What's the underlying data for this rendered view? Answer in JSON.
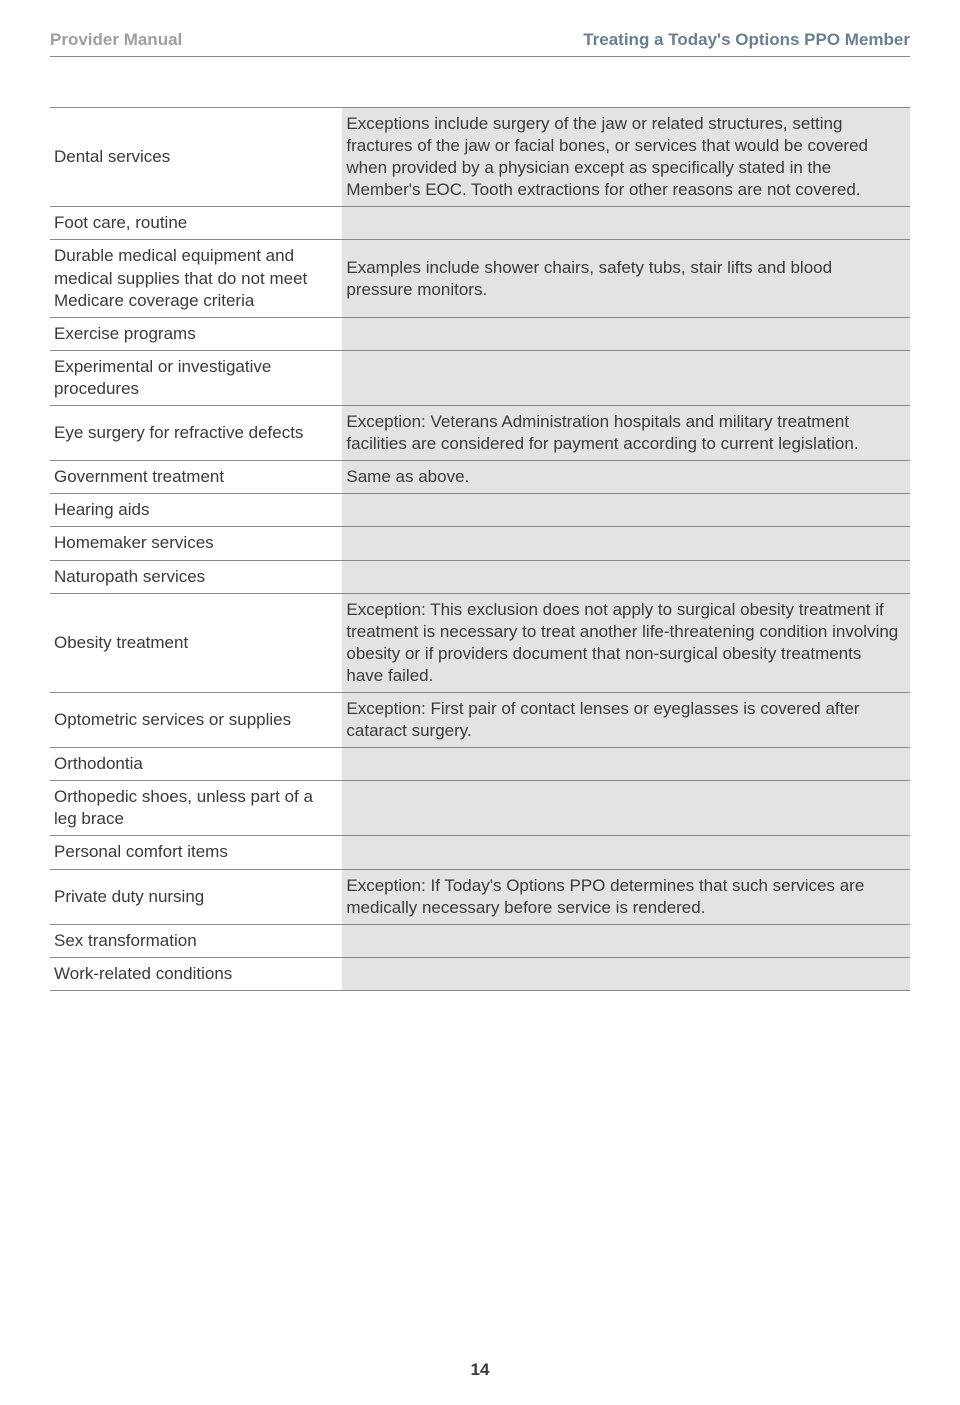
{
  "header": {
    "left": "Provider Manual",
    "right": "Treating a Today's Options PPO Member"
  },
  "table": {
    "columns": [
      "service",
      "notes"
    ],
    "col_widths": [
      "34%",
      "66%"
    ],
    "col_bg": [
      "#ffffff",
      "#e3e3e3"
    ],
    "border_color": "#888888",
    "text_color": "#3a3a3a",
    "fontsize": 17,
    "rows": [
      {
        "service": "Dental services",
        "notes": "Exceptions include surgery of the jaw or related structures, setting fractures of the jaw or facial bones, or services that would be covered when provided by a physician except as specifically stated in the Member's EOC. Tooth extractions for other reasons are not covered."
      },
      {
        "service": "Foot care, routine",
        "notes": ""
      },
      {
        "service": "Durable medical equipment and medical supplies that do not meet Medicare coverage criteria",
        "notes": "Examples include shower chairs, safety tubs, stair lifts and blood pressure monitors."
      },
      {
        "service": "Exercise programs",
        "notes": ""
      },
      {
        "service": "Experimental or investigative procedures",
        "notes": ""
      },
      {
        "service": "Eye surgery for refractive defects",
        "notes": "Exception: Veterans Administration hospitals and military treatment facilities are considered for payment according to current legislation."
      },
      {
        "service": "Government treatment",
        "notes": "Same as above."
      },
      {
        "service": "Hearing aids",
        "notes": ""
      },
      {
        "service": "Homemaker services",
        "notes": ""
      },
      {
        "service": "Naturopath services",
        "notes": ""
      },
      {
        "service": "Obesity treatment",
        "notes": "Exception: This exclusion does not apply to surgical obesity treatment if treatment is  necessary to treat another life-threatening condition involving obesity or if providers document that non-surgical obesity treatments have failed."
      },
      {
        "service": "Optometric services or supplies",
        "notes": "Exception: First pair of contact lenses or eyeglasses is covered after cataract surgery."
      },
      {
        "service": "Orthodontia",
        "notes": ""
      },
      {
        "service": "Orthopedic shoes, unless part of a leg brace",
        "notes": ""
      },
      {
        "service": "Personal comfort items",
        "notes": ""
      },
      {
        "service": "Private duty nursing",
        "notes": "Exception: If Today's Options PPO determines that such services are medically necessary before service is rendered."
      },
      {
        "service": "Sex  transformation",
        "notes": ""
      },
      {
        "service": "Work-related  conditions",
        "notes": ""
      }
    ]
  },
  "page_number": "14"
}
